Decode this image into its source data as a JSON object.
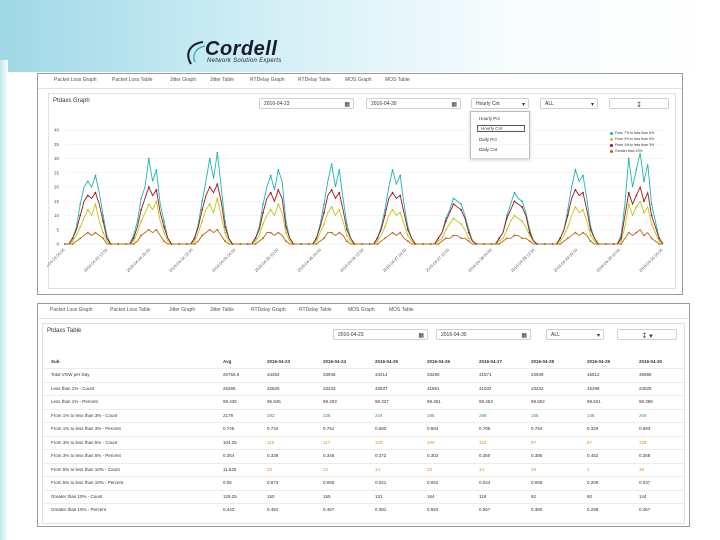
{
  "logo": {
    "title": "Cordell",
    "subtitle": "Network Solution Experts"
  },
  "colors": {
    "series1": "#1fb3b3",
    "series2": "#c2c414",
    "series3": "#a0161b",
    "series4": "#b36a12"
  },
  "top_panel": {
    "tabs": [
      "Packet Loss Graph",
      "Packet Loss Table",
      "Jitter Graph",
      "Jitter Table",
      "RTDelay Graph",
      "RTDelay Table",
      "MOS Graph",
      "MOS Table"
    ],
    "title": "Ptdaxs Graph",
    "start_date": "2016-04-23",
    "end_date": "2016-04-30",
    "interval": "Hourly Cnt",
    "filter": "ALL",
    "download_icon": "download-icon",
    "interval_options": [
      "Hourly Pct",
      "Hourly Cnt",
      "Daily Pct",
      "Daily Cnt"
    ],
    "selected_option": "Hourly Cnt"
  },
  "chart_data": {
    "type": "line",
    "title": "Ptdaxs Graph",
    "xlabel": "",
    "ylabel": "",
    "ylim": [
      0,
      40
    ],
    "yticks": [
      "0",
      "5",
      "10",
      "15",
      "20",
      "25",
      "30",
      "35",
      "40"
    ],
    "x_tick_labels": [
      "2016-04-23 00:00",
      "2016-04-23 12:00",
      "2016-04-24 00:00",
      "2016-04-24 12:00",
      "2016-04-25 00:00",
      "2016-04-25 12:00",
      "2016-04-26 00:00",
      "2016-04-26 12:00",
      "2016-04-27 00:00",
      "2016-04-27 12:00",
      "2016-04-28 00:00",
      "2016-04-28 12:00",
      "2016-04-29 00:00",
      "2016-04-29 12:00",
      "2016-04-30 00:00"
    ],
    "series": [
      {
        "name": "From 7% to less than 5%",
        "color": "#1fb3b3",
        "values": [
          0,
          0,
          2,
          6,
          14,
          20,
          22,
          20,
          24,
          18,
          10,
          3,
          0,
          0,
          0,
          0,
          0,
          0,
          3,
          8,
          16,
          20,
          30,
          22,
          26,
          14,
          8,
          2,
          0,
          0,
          0,
          0,
          0,
          0,
          2,
          7,
          15,
          22,
          30,
          23,
          32,
          20,
          8,
          2,
          0,
          0,
          0,
          0,
          0,
          0,
          2,
          6,
          14,
          20,
          24,
          19,
          26,
          22,
          8,
          2,
          0,
          0,
          0,
          0,
          0,
          0,
          2,
          7,
          14,
          22,
          28,
          20,
          26,
          16,
          7,
          2,
          0,
          0,
          0,
          0,
          0,
          0,
          2,
          6,
          12,
          20,
          26,
          21,
          24,
          14,
          6,
          2,
          0,
          0,
          0,
          0,
          0,
          0,
          2,
          4,
          9,
          12,
          16,
          15,
          14,
          10,
          5,
          1,
          0,
          0,
          0,
          0,
          0,
          0,
          2,
          4,
          10,
          14,
          18,
          16,
          15,
          11,
          5,
          1,
          0,
          0,
          0,
          0,
          0,
          0,
          2,
          5,
          12,
          20,
          26,
          22,
          24,
          16,
          6,
          2,
          0,
          0,
          0,
          0,
          0,
          0,
          3,
          14,
          30,
          20,
          26,
          32,
          22,
          28,
          14,
          8,
          2,
          0
        ]
      },
      {
        "name": "From 3% to less than 5%",
        "color": "#c2c414",
        "values": [
          0,
          0,
          1,
          3,
          6,
          9,
          12,
          10,
          14,
          8,
          4,
          1,
          0,
          0,
          0,
          0,
          0,
          0,
          1,
          4,
          8,
          11,
          14,
          12,
          15,
          8,
          4,
          1,
          0,
          0,
          0,
          0,
          0,
          0,
          1,
          4,
          8,
          12,
          14,
          11,
          16,
          10,
          4,
          1,
          0,
          0,
          0,
          0,
          0,
          0,
          1,
          3,
          7,
          10,
          12,
          10,
          14,
          11,
          4,
          1,
          0,
          0,
          0,
          0,
          0,
          0,
          1,
          4,
          7,
          11,
          13,
          10,
          12,
          8,
          3,
          1,
          0,
          0,
          0,
          0,
          0,
          0,
          1,
          3,
          6,
          10,
          12,
          10,
          11,
          7,
          3,
          1,
          0,
          0,
          0,
          0,
          0,
          0,
          1,
          2,
          5,
          7,
          9,
          8,
          7,
          5,
          2,
          1,
          0,
          0,
          0,
          0,
          0,
          0,
          1,
          2,
          5,
          8,
          10,
          9,
          8,
          6,
          3,
          1,
          0,
          0,
          0,
          0,
          0,
          0,
          1,
          3,
          6,
          10,
          13,
          11,
          12,
          8,
          3,
          1,
          0,
          0,
          0,
          0,
          0,
          0,
          1,
          6,
          14,
          10,
          13,
          15,
          11,
          13,
          7,
          4,
          1,
          0
        ]
      },
      {
        "name": "From 1% to less than 3%",
        "color": "#a0161b",
        "values": [
          0,
          0,
          2,
          5,
          10,
          15,
          17,
          16,
          18,
          14,
          8,
          2,
          0,
          0,
          0,
          0,
          0,
          0,
          2,
          6,
          12,
          16,
          20,
          17,
          19,
          11,
          6,
          2,
          0,
          0,
          0,
          0,
          0,
          0,
          2,
          6,
          12,
          17,
          20,
          18,
          21,
          15,
          6,
          2,
          0,
          0,
          0,
          0,
          0,
          0,
          2,
          5,
          11,
          16,
          18,
          15,
          19,
          16,
          6,
          2,
          0,
          0,
          0,
          0,
          0,
          0,
          2,
          6,
          11,
          17,
          19,
          16,
          18,
          12,
          5,
          2,
          0,
          0,
          0,
          0,
          0,
          0,
          2,
          5,
          10,
          16,
          18,
          16,
          17,
          11,
          5,
          2,
          0,
          0,
          0,
          0,
          0,
          0,
          2,
          4,
          8,
          11,
          14,
          13,
          12,
          9,
          4,
          1,
          0,
          0,
          0,
          0,
          0,
          0,
          2,
          4,
          9,
          12,
          15,
          14,
          13,
          10,
          4,
          1,
          0,
          0,
          0,
          0,
          0,
          0,
          2,
          5,
          10,
          16,
          19,
          17,
          18,
          12,
          5,
          2,
          0,
          0,
          0,
          0,
          0,
          0,
          2,
          10,
          18,
          14,
          17,
          20,
          15,
          18,
          10,
          6,
          2,
          0
        ]
      },
      {
        "name": "Greater than 10%",
        "color": "#b36a12",
        "values": [
          0,
          0,
          0,
          1,
          2,
          3,
          4,
          3,
          4,
          3,
          2,
          0,
          0,
          0,
          0,
          0,
          0,
          0,
          0,
          1,
          3,
          4,
          5,
          4,
          5,
          3,
          1,
          0,
          0,
          0,
          0,
          0,
          0,
          0,
          0,
          1,
          3,
          4,
          5,
          4,
          5,
          3,
          1,
          0,
          0,
          0,
          0,
          0,
          0,
          0,
          0,
          1,
          2,
          4,
          4,
          3,
          4,
          3,
          1,
          0,
          0,
          0,
          0,
          0,
          0,
          0,
          0,
          1,
          2,
          4,
          4,
          3,
          4,
          3,
          1,
          0,
          0,
          0,
          0,
          0,
          0,
          0,
          0,
          1,
          2,
          3,
          4,
          3,
          4,
          2,
          1,
          0,
          0,
          0,
          0,
          0,
          0,
          0,
          0,
          1,
          2,
          2,
          3,
          3,
          2,
          2,
          1,
          0,
          0,
          0,
          0,
          0,
          0,
          0,
          0,
          1,
          2,
          2,
          3,
          3,
          2,
          2,
          1,
          0,
          0,
          0,
          0,
          0,
          0,
          0,
          0,
          1,
          2,
          3,
          4,
          3,
          4,
          3,
          1,
          0,
          0,
          0,
          0,
          0,
          0,
          0,
          0,
          2,
          4,
          3,
          4,
          5,
          3,
          4,
          2,
          1,
          0,
          0
        ]
      }
    ]
  },
  "bottom_panel": {
    "tabs": [
      "Packet Loss Graph",
      "Packet Loss Table",
      "Jitter Graph",
      "Jitter Table",
      "RTDelay Graph",
      "RTDelay Table",
      "MOS Graph",
      "MOS Table"
    ],
    "title": "Ptdaxs Table",
    "start_date": "2016-04-23",
    "end_date": "2016-04-30",
    "filter": "ALL",
    "columns": [
      "Sub",
      "Avg",
      "2016-04-23",
      "2016-04-24",
      "2016-04-25",
      "2016-04-26",
      "2016-04-27",
      "2016-04-28",
      "2016-04-29",
      "2016-04-30"
    ],
    "rows": [
      {
        "label": "Total VGW per Day",
        "values": [
          "26755.5",
          "34354",
          "33945",
          "34414",
          "33290",
          "31571",
          "23549",
          "16512",
          "35986"
        ],
        "cls": ""
      },
      {
        "label": "Less than 1% - Count",
        "values": [
          "26295",
          "32828",
          "33433",
          "33837",
          "31891",
          "31032",
          "23232",
          "16298",
          "24025"
        ],
        "cls": ""
      },
      {
        "label": "Less than 1% - Percent",
        "values": [
          "98.435",
          "95.945",
          "98.403",
          "98.327",
          "98.451",
          "98.453",
          "98.652",
          "98.621",
          "98.398"
        ],
        "cls": ""
      },
      {
        "label": "From 1% to less than 3% - Count",
        "values": [
          "2178",
          "282",
          "228",
          "234",
          "195",
          "288",
          "155",
          "148",
          "208"
        ],
        "cls": "green"
      },
      {
        "label": "From 1% to less than 3% - Percent",
        "values": [
          "0.745",
          "0.734",
          "0.751",
          "0.680",
          "0.684",
          "0.795",
          "0.754",
          "0.329",
          "0.693"
        ],
        "cls": ""
      },
      {
        "label": "From 3% to less than 5% - Count",
        "values": [
          "104.25",
          "115",
          "117",
          "120",
          "100",
          "112",
          "97",
          "67",
          "129"
        ],
        "cls": "orange"
      },
      {
        "label": "From 3% to less than 5% - Percent",
        "values": [
          "0.354",
          "0.338",
          "0.345",
          "0.372",
          "0.302",
          "0.350",
          "0.385",
          "0.452",
          "0.358"
        ],
        "cls": ""
      },
      {
        "label": "From 5% to less than 10% - Count",
        "values": [
          "11.625",
          "20",
          "12",
          "14",
          "23",
          "14",
          "18",
          "1",
          "18"
        ],
        "cls": "orange"
      },
      {
        "label": "From 5% to less than 10% - Percent",
        "values": [
          "0.05",
          "0.873",
          "0.055",
          "0.041",
          "0.062",
          "0.044",
          "0.065",
          "0.209",
          "0.037"
        ],
        "cls": ""
      },
      {
        "label": "Greater than 10% - Count",
        "values": [
          "129.25",
          "150",
          "155",
          "131",
          "164",
          "118",
          "92",
          "50",
          "144"
        ],
        "cls": ""
      },
      {
        "label": "Greater than 10% - Percent",
        "values": [
          "0.443",
          "0.452",
          "0.457",
          "0.381",
          "0.583",
          "0.567",
          "0.380",
          "0.298",
          "0.467"
        ],
        "cls": ""
      }
    ]
  }
}
